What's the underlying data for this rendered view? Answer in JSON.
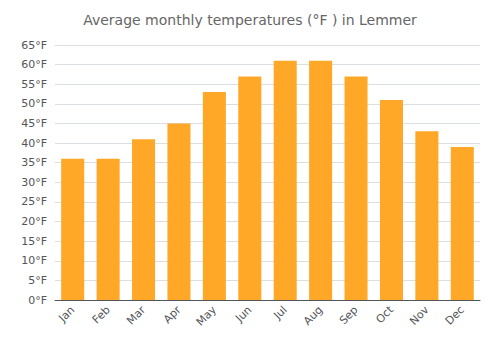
{
  "chart_data": {
    "type": "bar",
    "title": "Average monthly temperatures (°F ) in Lemmer",
    "categories": [
      "Jan",
      "Feb",
      "Mar",
      "Apr",
      "May",
      "Jun",
      "Jul",
      "Aug",
      "Sep",
      "Oct",
      "Nov",
      "Dec"
    ],
    "values": [
      36,
      36,
      41,
      45,
      53,
      57,
      61,
      61,
      57,
      51,
      43,
      39
    ],
    "color": "#FFA726",
    "ylim": [
      0,
      65
    ],
    "yticks": [
      {
        "value": 0,
        "label": "0°F"
      },
      {
        "value": 5,
        "label": "5°F"
      },
      {
        "value": 10,
        "label": "10°F"
      },
      {
        "value": 15,
        "label": "15°F"
      },
      {
        "value": 20,
        "label": "20°F"
      },
      {
        "value": 25,
        "label": "25°F"
      },
      {
        "value": 30,
        "label": "30°F"
      },
      {
        "value": 35,
        "label": "35°F"
      },
      {
        "value": 40,
        "label": "40°F"
      },
      {
        "value": 45,
        "label": "45°F"
      },
      {
        "value": 50,
        "label": "50°F"
      },
      {
        "value": 55,
        "label": "55°F"
      },
      {
        "value": 60,
        "label": "60°F"
      },
      {
        "value": 65,
        "label": "65°F"
      }
    ],
    "grid": true
  }
}
